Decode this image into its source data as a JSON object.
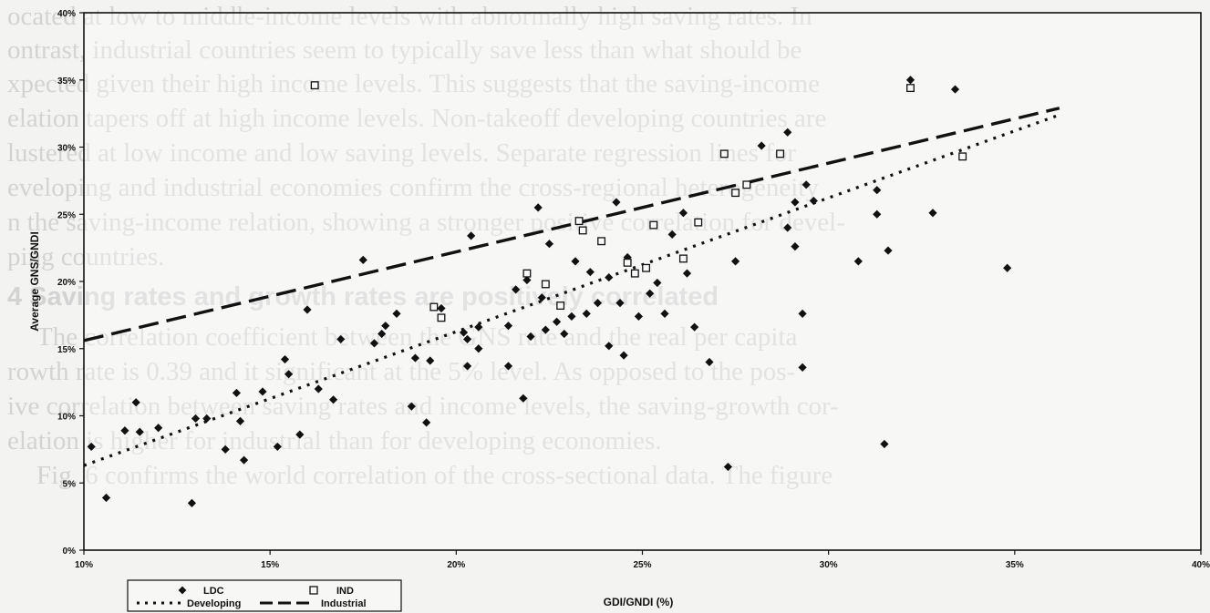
{
  "background_text": [
    "ocated at low to middle-income levels with abnormally high saving rates. In",
    "ontrast, industrial countries seem to typically save less than what should be",
    "xpected given their high income levels. This suggests that the saving-income",
    "elation tapers off at high income levels. Non-takeoff developing countries are",
    "lustered at low income and low saving levels. Separate regression lines for",
    "eveloping and industrial economies confirm the cross-regional heterogeneity",
    "n the saving-income relation, showing a stronger positive correlation for devel-",
    "ping countries.",
    "4 Saving rates and growth rates are positively correlated",
    "The correlation coefficient between the GNS rate and the real per capita",
    "rowth rate is 0.39 and it significant at the 5% level. As opposed to the pos-",
    "ive correlation between saving rates and income levels, the saving-growth cor-",
    "elation is higher for industrial than for developing economies.",
    "Fig. 6 confirms the world correlation of the cross-sectional data. The figure"
  ],
  "chart_data": {
    "type": "scatter",
    "xlabel": "GDI/GNDI (%)",
    "ylabel": "Average GNS/GNDI",
    "xlim": [
      10,
      40
    ],
    "ylim": [
      0,
      40
    ],
    "x_ticks": [
      "10%",
      "15%",
      "20%",
      "25%",
      "30%",
      "35%",
      "40%"
    ],
    "y_ticks": [
      "0%",
      "5%",
      "10%",
      "15%",
      "20%",
      "25%",
      "30%",
      "35%",
      "40%"
    ],
    "legend": {
      "placement": "bottom-left",
      "items": [
        {
          "label": "LDC",
          "marker": "diamond"
        },
        {
          "label": "IND",
          "marker": "open-square"
        },
        {
          "label": "Developing",
          "line": "dotted"
        },
        {
          "label": "Industrial",
          "line": "dashed"
        }
      ]
    },
    "series": [
      {
        "name": "LDC",
        "marker": "diamond",
        "points": [
          [
            10.2,
            7.7
          ],
          [
            10.6,
            3.9
          ],
          [
            11.1,
            8.9
          ],
          [
            11.4,
            11.0
          ],
          [
            11.5,
            8.8
          ],
          [
            12.0,
            9.1
          ],
          [
            12.9,
            3.5
          ],
          [
            13.0,
            9.8
          ],
          [
            13.3,
            9.8
          ],
          [
            13.8,
            7.5
          ],
          [
            14.1,
            11.7
          ],
          [
            14.2,
            9.6
          ],
          [
            14.3,
            6.7
          ],
          [
            14.8,
            11.8
          ],
          [
            15.2,
            7.7
          ],
          [
            15.4,
            14.2
          ],
          [
            15.5,
            13.1
          ],
          [
            15.8,
            8.6
          ],
          [
            16.0,
            17.9
          ],
          [
            16.3,
            12.0
          ],
          [
            16.7,
            11.2
          ],
          [
            16.9,
            15.7
          ],
          [
            17.5,
            21.6
          ],
          [
            17.8,
            15.4
          ],
          [
            18.0,
            16.1
          ],
          [
            18.1,
            16.7
          ],
          [
            18.4,
            17.6
          ],
          [
            18.8,
            10.7
          ],
          [
            18.9,
            14.3
          ],
          [
            19.2,
            9.5
          ],
          [
            19.3,
            14.1
          ],
          [
            19.6,
            18.0
          ],
          [
            20.2,
            16.2
          ],
          [
            20.3,
            13.7
          ],
          [
            20.3,
            15.7
          ],
          [
            20.4,
            23.4
          ],
          [
            20.6,
            16.6
          ],
          [
            20.6,
            15.0
          ],
          [
            21.4,
            16.7
          ],
          [
            21.4,
            13.7
          ],
          [
            21.6,
            19.4
          ],
          [
            21.8,
            11.3
          ],
          [
            21.9,
            20.1
          ],
          [
            22.0,
            15.9
          ],
          [
            22.2,
            25.5
          ],
          [
            22.3,
            18.8
          ],
          [
            22.4,
            16.4
          ],
          [
            22.5,
            22.8
          ],
          [
            22.7,
            17.0
          ],
          [
            22.9,
            16.1
          ],
          [
            23.1,
            17.4
          ],
          [
            23.2,
            21.5
          ],
          [
            23.5,
            17.6
          ],
          [
            23.6,
            20.7
          ],
          [
            23.8,
            18.4
          ],
          [
            24.1,
            20.3
          ],
          [
            24.1,
            15.2
          ],
          [
            24.3,
            25.9
          ],
          [
            24.4,
            18.4
          ],
          [
            24.5,
            14.5
          ],
          [
            24.6,
            21.8
          ],
          [
            24.9,
            17.4
          ],
          [
            25.2,
            19.1
          ],
          [
            25.4,
            19.9
          ],
          [
            25.6,
            17.6
          ],
          [
            25.8,
            23.5
          ],
          [
            26.1,
            25.1
          ],
          [
            26.2,
            20.6
          ],
          [
            26.4,
            16.6
          ],
          [
            26.8,
            14.0
          ],
          [
            27.3,
            6.2
          ],
          [
            27.5,
            21.5
          ],
          [
            28.2,
            30.1
          ],
          [
            28.9,
            24.0
          ],
          [
            28.9,
            31.1
          ],
          [
            29.1,
            22.6
          ],
          [
            29.1,
            25.9
          ],
          [
            29.3,
            17.6
          ],
          [
            29.3,
            13.6
          ],
          [
            29.4,
            27.2
          ],
          [
            29.6,
            26.0
          ],
          [
            30.8,
            21.5
          ],
          [
            31.3,
            26.8
          ],
          [
            31.3,
            25.0
          ],
          [
            31.5,
            7.9
          ],
          [
            31.6,
            22.3
          ],
          [
            32.2,
            35.0
          ],
          [
            32.8,
            25.1
          ],
          [
            33.4,
            34.3
          ],
          [
            34.8,
            21.0
          ]
        ]
      },
      {
        "name": "IND",
        "marker": "open-square",
        "points": [
          [
            16.2,
            34.6
          ],
          [
            19.4,
            18.1
          ],
          [
            19.6,
            17.3
          ],
          [
            21.9,
            20.6
          ],
          [
            22.4,
            19.8
          ],
          [
            22.8,
            18.2
          ],
          [
            23.3,
            24.5
          ],
          [
            23.4,
            23.8
          ],
          [
            23.9,
            23.0
          ],
          [
            24.6,
            21.4
          ],
          [
            24.8,
            20.6
          ],
          [
            25.1,
            21.0
          ],
          [
            25.3,
            24.2
          ],
          [
            26.1,
            21.7
          ],
          [
            26.5,
            24.4
          ],
          [
            27.2,
            29.5
          ],
          [
            27.5,
            26.6
          ],
          [
            27.8,
            27.2
          ],
          [
            28.7,
            29.5
          ],
          [
            32.2,
            34.4
          ],
          [
            33.6,
            29.3
          ]
        ]
      }
    ],
    "regression_lines": [
      {
        "name": "Developing",
        "style": "dotted",
        "x": [
          10,
          36.2
        ],
        "y": [
          6.3,
          32.4
        ]
      },
      {
        "name": "Industrial",
        "style": "dashed",
        "x": [
          10,
          36.2
        ],
        "y": [
          15.6,
          32.9
        ]
      }
    ]
  }
}
